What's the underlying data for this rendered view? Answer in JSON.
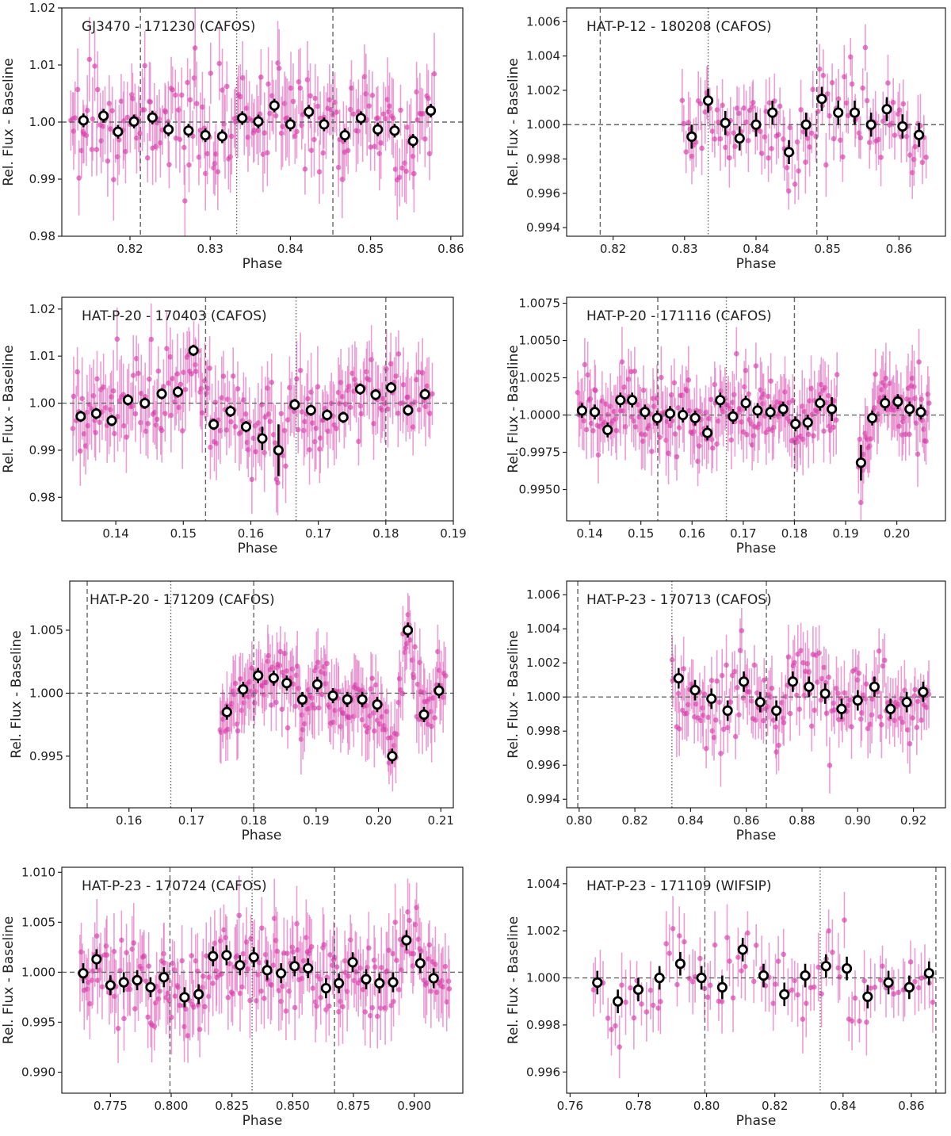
{
  "figure": {
    "point_color": "#d63ca8",
    "errbar_color": "#e47cc6",
    "bin_edge_color": "#000000",
    "bin_face_color": "#ffffff",
    "line_color": "#666666"
  },
  "chart_data": [
    {
      "type": "scatter",
      "title": "GJ3470 - 171230 (CAFOS)",
      "xlabel": "Phase",
      "ylabel": "Rel. Flux - Baseline",
      "xlim": [
        0.8115,
        0.8615
      ],
      "ylim": [
        0.98,
        1.02
      ],
      "xticks": [
        0.82,
        0.83,
        0.84,
        0.85,
        0.86
      ],
      "xtick_labels": [
        "0.82",
        "0.83",
        "0.84",
        "0.85",
        "0.86"
      ],
      "yticks": [
        0.98,
        0.99,
        1.0,
        1.01,
        1.02
      ],
      "ytick_labels": [
        "0.98",
        "0.99",
        "1.00",
        "1.01",
        "1.02"
      ],
      "baseline": 1.0,
      "dashed_x": [
        0.8213,
        0.8453
      ],
      "dotted_x": [
        0.8333
      ],
      "raw_range": [
        0.8125,
        0.858
      ],
      "raw_count": 210,
      "raw_scatter": 0.0045,
      "raw_err": 0.0055,
      "binned": {
        "x": [
          0.8142,
          0.8167,
          0.8185,
          0.8205,
          0.8228,
          0.8248,
          0.8273,
          0.8294,
          0.8315,
          0.834,
          0.836,
          0.838,
          0.84,
          0.8423,
          0.8442,
          0.8468,
          0.8488,
          0.8509,
          0.853,
          0.8553,
          0.8575
        ],
        "y": [
          1.0003,
          1.0011,
          0.9983,
          1.0001,
          1.0008,
          0.9987,
          0.9985,
          0.9977,
          0.9975,
          1.0007,
          1.0001,
          1.0029,
          0.9996,
          1.0018,
          0.9996,
          0.9977,
          1.0007,
          0.9987,
          0.9985,
          0.9967,
          1.002
        ],
        "err": [
          0.0012,
          0.0012,
          0.0012,
          0.0012,
          0.0012,
          0.0012,
          0.0012,
          0.0012,
          0.0012,
          0.0012,
          0.0012,
          0.0012,
          0.0012,
          0.0012,
          0.0012,
          0.0012,
          0.0012,
          0.0012,
          0.0012,
          0.0012,
          0.0012
        ]
      }
    },
    {
      "type": "scatter",
      "title": "HAT-P-12 - 180208 (CAFOS)",
      "xlabel": "Phase",
      "ylabel": "Rel. Flux - Baseline",
      "xlim": [
        0.8135,
        0.8665
      ],
      "ylim": [
        0.9935,
        1.0068
      ],
      "xticks": [
        0.82,
        0.83,
        0.84,
        0.85,
        0.86
      ],
      "xtick_labels": [
        "0.82",
        "0.83",
        "0.84",
        "0.85",
        "0.86"
      ],
      "yticks": [
        0.994,
        0.996,
        0.998,
        1.0,
        1.002,
        1.004,
        1.006
      ],
      "ytick_labels": [
        "0.994",
        "0.996",
        "0.998",
        "1.000",
        "1.002",
        "1.004",
        "1.006"
      ],
      "baseline": 1.0,
      "dashed_x": [
        0.8182,
        0.8485
      ],
      "dotted_x": [
        0.8333
      ],
      "raw_range": [
        0.8295,
        0.864
      ],
      "raw_count": 120,
      "raw_scatter": 0.0013,
      "raw_err": 0.0014,
      "binned": {
        "x": [
          0.831,
          0.8333,
          0.8357,
          0.8377,
          0.84,
          0.8423,
          0.8446,
          0.847,
          0.8492,
          0.8515,
          0.8538,
          0.8561,
          0.8583,
          0.8605,
          0.8628
        ],
        "y": [
          0.9993,
          1.0014,
          1.0001,
          0.9992,
          1.0,
          1.0007,
          0.9984,
          1.0,
          1.0015,
          1.0007,
          1.0007,
          1.0,
          1.0009,
          0.9999,
          0.9994
        ],
        "err": [
          0.0007,
          0.0007,
          0.0007,
          0.0007,
          0.0007,
          0.0007,
          0.0007,
          0.0007,
          0.0007,
          0.0007,
          0.0007,
          0.0007,
          0.0007,
          0.0007,
          0.0007
        ]
      }
    },
    {
      "type": "scatter",
      "title": "HAT-P-20 - 170403 (CAFOS)",
      "xlabel": "Phase",
      "ylabel": "Rel. Flux - Baseline",
      "xlim": [
        0.132,
        0.19
      ],
      "ylim": [
        0.975,
        1.0225
      ],
      "xticks": [
        0.14,
        0.15,
        0.16,
        0.17,
        0.18,
        0.19
      ],
      "xtick_labels": [
        "0.14",
        "0.15",
        "0.16",
        "0.17",
        "0.18",
        "0.19"
      ],
      "yticks": [
        0.98,
        0.99,
        1.0,
        1.01,
        1.02
      ],
      "ytick_labels": [
        "0.98",
        "0.99",
        "1.00",
        "1.01",
        "1.02"
      ],
      "baseline": 1.0,
      "dashed_x": [
        0.1533,
        0.18
      ],
      "dotted_x": [
        0.1667
      ],
      "raw_range": [
        0.1335,
        0.187
      ],
      "raw_count": 230,
      "raw_scatter": 0.0045,
      "raw_err": 0.0065,
      "binned": {
        "x": [
          0.1348,
          0.1371,
          0.1394,
          0.1418,
          0.1443,
          0.1468,
          0.1492,
          0.1515,
          0.1545,
          0.157,
          0.1593,
          0.1617,
          0.1641,
          0.1665,
          0.1689,
          0.1713,
          0.1737,
          0.1762,
          0.1785,
          0.1808,
          0.1833,
          0.1858
        ],
        "y": [
          0.9972,
          0.9978,
          0.9963,
          1.0007,
          1.0,
          1.002,
          1.0024,
          1.0112,
          0.9955,
          0.9983,
          0.995,
          0.9925,
          0.99,
          0.9997,
          0.9985,
          0.9975,
          0.997,
          1.003,
          1.0018,
          1.0033,
          0.9985,
          1.0019
        ],
        "err": [
          0.0012,
          0.0012,
          0.0012,
          0.0012,
          0.0012,
          0.0012,
          0.0012,
          0.0012,
          0.0012,
          0.0012,
          0.0012,
          0.0025,
          0.0055,
          0.0012,
          0.0012,
          0.0012,
          0.0012,
          0.0012,
          0.0012,
          0.0012,
          0.0012,
          0.0012
        ]
      }
    },
    {
      "type": "scatter",
      "title": "HAT-P-20 - 171116 (CAFOS)",
      "xlabel": "Phase",
      "ylabel": "Rel. Flux - Baseline",
      "xlim": [
        0.1355,
        0.2095
      ],
      "ylim": [
        0.9929,
        1.0079
      ],
      "xticks": [
        0.14,
        0.15,
        0.16,
        0.17,
        0.18,
        0.19,
        0.2
      ],
      "xtick_labels": [
        "0.14",
        "0.15",
        "0.16",
        "0.17",
        "0.18",
        "0.19",
        "0.20"
      ],
      "yticks": [
        0.995,
        0.9975,
        1.0,
        1.0025,
        1.005,
        1.0075
      ],
      "ytick_labels": [
        "0.9950",
        "0.9975",
        "1.0000",
        "1.0025",
        "1.0050",
        "1.0075"
      ],
      "baseline": 1.0,
      "dashed_x": [
        0.1533,
        0.18
      ],
      "dotted_x": [
        0.1667
      ],
      "raw_range": [
        0.1375,
        0.1885
      ],
      "raw_range2": [
        0.1925,
        0.2065
      ],
      "raw_count": 200,
      "raw_count2": 60,
      "raw_scatter": 0.0012,
      "raw_err": 0.0018,
      "binned": {
        "x": [
          0.1385,
          0.141,
          0.1435,
          0.146,
          0.1483,
          0.1508,
          0.1532,
          0.1557,
          0.1582,
          0.1606,
          0.163,
          0.1655,
          0.168,
          0.1705,
          0.1728,
          0.1753,
          0.1778,
          0.1802,
          0.1826,
          0.185,
          0.1873,
          0.193,
          0.1952,
          0.1977,
          0.2002,
          0.2025,
          0.2047
        ],
        "y": [
          1.0003,
          1.0002,
          0.999,
          1.001,
          1.001,
          1.0002,
          0.9998,
          1.0001,
          1.0,
          0.9998,
          0.9988,
          1.001,
          0.9999,
          1.0008,
          1.0003,
          1.0002,
          1.0004,
          0.9994,
          0.9995,
          1.0008,
          1.0004,
          0.9968,
          0.9998,
          1.0008,
          1.0009,
          1.0004,
          1.0002
        ],
        "err": [
          0.0005,
          0.0005,
          0.0005,
          0.0005,
          0.0005,
          0.0005,
          0.0005,
          0.0005,
          0.0005,
          0.0005,
          0.0005,
          0.0005,
          0.0005,
          0.0005,
          0.0005,
          0.0005,
          0.0005,
          0.0005,
          0.0005,
          0.0005,
          0.0008,
          0.0012,
          0.0005,
          0.0005,
          0.0005,
          0.0005,
          0.0005
        ]
      }
    },
    {
      "type": "scatter",
      "title": "HAT-P-20 - 171209 (CAFOS)",
      "xlabel": "Phase",
      "ylabel": "Rel. Flux - Baseline",
      "xlim": [
        0.1505,
        0.212
      ],
      "ylim": [
        0.9909,
        1.0089
      ],
      "xticks": [
        0.16,
        0.17,
        0.18,
        0.19,
        0.2,
        0.21
      ],
      "xtick_labels": [
        "0.16",
        "0.17",
        "0.18",
        "0.19",
        "0.20",
        "0.21"
      ],
      "yticks": [
        0.995,
        1.0,
        1.005
      ],
      "ytick_labels": [
        "0.995",
        "1.000",
        "1.005"
      ],
      "baseline": 1.0,
      "dashed_x": [
        0.1533,
        0.18
      ],
      "dotted_x": [
        0.1667
      ],
      "raw_range": [
        0.1745,
        0.2108
      ],
      "raw_count": 190,
      "raw_scatter": 0.0012,
      "raw_err": 0.0022,
      "binned": {
        "x": [
          0.1757,
          0.1783,
          0.1807,
          0.1832,
          0.1853,
          0.1878,
          0.1902,
          0.1927,
          0.195,
          0.1974,
          0.1998,
          0.2022,
          0.2047,
          0.2073,
          0.2097
        ],
        "y": [
          0.9985,
          1.0003,
          1.0014,
          1.0012,
          1.0008,
          0.9995,
          1.0007,
          0.9998,
          0.9995,
          0.9995,
          0.9991,
          0.995,
          1.005,
          0.9983,
          1.0002
        ],
        "err": [
          0.0006,
          0.0006,
          0.0006,
          0.0006,
          0.0006,
          0.0006,
          0.0006,
          0.0006,
          0.0006,
          0.0006,
          0.0006,
          0.0006,
          0.0006,
          0.0006,
          0.0006
        ]
      }
    },
    {
      "type": "scatter",
      "title": "HAT-P-23 - 170713 (CAFOS)",
      "xlabel": "Phase",
      "ylabel": "Rel. Flux - Baseline",
      "xlim": [
        0.7955,
        0.9315
      ],
      "ylim": [
        0.9935,
        1.0068
      ],
      "xticks": [
        0.8,
        0.82,
        0.84,
        0.86,
        0.88,
        0.9,
        0.92
      ],
      "xtick_labels": [
        "0.80",
        "0.82",
        "0.84",
        "0.86",
        "0.88",
        "0.90",
        "0.92"
      ],
      "yticks": [
        0.994,
        0.996,
        0.998,
        1.0,
        1.002,
        1.004,
        1.006
      ],
      "ytick_labels": [
        "0.994",
        "0.996",
        "0.998",
        "1.000",
        "1.002",
        "1.004",
        "1.006"
      ],
      "baseline": 1.0,
      "dashed_x": [
        0.7995,
        0.8672
      ],
      "dotted_x": [
        0.8333
      ],
      "raw_range": [
        0.833,
        0.926
      ],
      "raw_count": 170,
      "raw_scatter": 0.0012,
      "raw_err": 0.0015,
      "binned": {
        "x": [
          0.8357,
          0.8416,
          0.8475,
          0.8533,
          0.8591,
          0.865,
          0.8708,
          0.8767,
          0.8825,
          0.8883,
          0.8942,
          0.9,
          0.906,
          0.9118,
          0.9176,
          0.9235
        ],
        "y": [
          1.0011,
          1.0004,
          0.9999,
          0.9992,
          1.0009,
          0.9997,
          0.9992,
          1.0009,
          1.0006,
          1.0002,
          0.9993,
          0.9998,
          1.0006,
          0.9993,
          0.9997,
          1.0003
        ],
        "err": [
          0.0006,
          0.0006,
          0.0006,
          0.0006,
          0.0006,
          0.0006,
          0.0006,
          0.0006,
          0.0006,
          0.0006,
          0.0006,
          0.0006,
          0.0006,
          0.0006,
          0.0006,
          0.0006
        ]
      }
    },
    {
      "type": "scatter",
      "title": "HAT-P-23 - 170724 (CAFOS)",
      "xlabel": "Phase",
      "ylabel": "Rel. Flux - Baseline",
      "xlim": [
        0.755,
        0.92
      ],
      "ylim": [
        0.9879,
        1.0105
      ],
      "xticks": [
        0.775,
        0.8,
        0.825,
        0.85,
        0.875,
        0.9
      ],
      "xtick_labels": [
        "0.775",
        "0.800",
        "0.825",
        "0.850",
        "0.875",
        "0.900"
      ],
      "yticks": [
        0.99,
        0.995,
        1.0,
        1.005,
        1.01
      ],
      "ytick_labels": [
        "0.990",
        "0.995",
        "1.000",
        "1.005",
        "1.010"
      ],
      "baseline": 1.0,
      "dashed_x": [
        0.7995,
        0.8672
      ],
      "dotted_x": [
        0.8333
      ],
      "raw_range": [
        0.762,
        0.915
      ],
      "raw_count": 240,
      "raw_scatter": 0.0022,
      "raw_err": 0.003,
      "binned": {
        "x": [
          0.7638,
          0.7693,
          0.775,
          0.7805,
          0.786,
          0.7915,
          0.797,
          0.8055,
          0.8113,
          0.8172,
          0.8228,
          0.8283,
          0.834,
          0.8395,
          0.8452,
          0.8508,
          0.8563,
          0.8637,
          0.869,
          0.8747,
          0.8802,
          0.8857,
          0.8913,
          0.8968,
          0.9025,
          0.908
        ],
        "y": [
          0.9999,
          1.0013,
          0.9987,
          0.999,
          0.9992,
          0.9985,
          0.9995,
          0.9975,
          0.9978,
          1.0016,
          1.0017,
          1.0007,
          1.0015,
          1.0002,
          0.9999,
          1.0006,
          1.0004,
          0.9984,
          0.9989,
          1.001,
          0.9993,
          0.9989,
          0.999,
          1.0032,
          1.0009,
          0.9994
        ],
        "err": [
          0.001,
          0.001,
          0.001,
          0.001,
          0.001,
          0.001,
          0.001,
          0.001,
          0.001,
          0.001,
          0.001,
          0.001,
          0.001,
          0.001,
          0.001,
          0.001,
          0.001,
          0.001,
          0.001,
          0.001,
          0.001,
          0.001,
          0.001,
          0.001,
          0.001,
          0.001
        ]
      }
    },
    {
      "type": "scatter",
      "title": "HAT-P-23 - 171109 (WIFSIP)",
      "xlabel": "Phase",
      "ylabel": "Rel. Flux - Baseline",
      "xlim": [
        0.759,
        0.87
      ],
      "ylim": [
        0.9951,
        1.0047
      ],
      "xticks": [
        0.76,
        0.78,
        0.8,
        0.82,
        0.84,
        0.86
      ],
      "xtick_labels": [
        "0.76",
        "0.78",
        "0.80",
        "0.82",
        "0.84",
        "0.86"
      ],
      "yticks": [
        0.996,
        0.998,
        1.0,
        1.002,
        1.004
      ],
      "ytick_labels": [
        "0.996",
        "0.998",
        "1.000",
        "1.002",
        "1.004"
      ],
      "baseline": 1.0,
      "dashed_x": [
        0.7995,
        0.8672
      ],
      "dotted_x": [
        0.8333
      ],
      "raw_range": [
        0.766,
        0.867
      ],
      "raw_count": 90,
      "raw_scatter": 0.0009,
      "raw_err": 0.0011,
      "binned": {
        "x": [
          0.768,
          0.774,
          0.78,
          0.7862,
          0.7923,
          0.7985,
          0.8046,
          0.8106,
          0.8167,
          0.8228,
          0.8289,
          0.835,
          0.8411,
          0.8472,
          0.8533,
          0.8594,
          0.8652
        ],
        "y": [
          0.9998,
          0.999,
          0.9995,
          1.0,
          1.0006,
          1.0,
          0.9996,
          1.0012,
          1.0001,
          0.9993,
          1.0001,
          1.0005,
          1.0004,
          0.9992,
          0.9998,
          0.9996,
          1.0002
        ],
        "err": [
          0.0005,
          0.0005,
          0.0005,
          0.0005,
          0.0005,
          0.0005,
          0.0005,
          0.0005,
          0.0005,
          0.0005,
          0.0005,
          0.0005,
          0.0005,
          0.0005,
          0.0005,
          0.0005,
          0.0005
        ]
      }
    }
  ]
}
